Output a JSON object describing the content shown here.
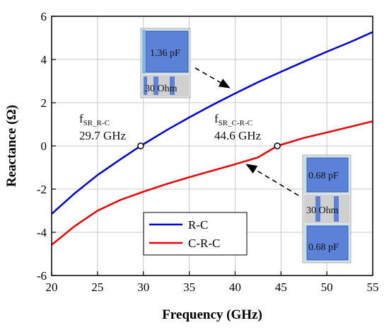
{
  "chart_data": {
    "type": "line",
    "xlabel": "Frequency (GHz)",
    "ylabel": "Reactance (Ω)",
    "xlim": [
      20,
      55
    ],
    "ylim": [
      -6,
      6
    ],
    "xticks": [
      20,
      25,
      30,
      35,
      40,
      45,
      50,
      55
    ],
    "yticks": [
      -6,
      -4,
      -2,
      0,
      2,
      4,
      6
    ],
    "grid": true,
    "legend_position": "lower-center",
    "series": [
      {
        "name": "R-C",
        "color": "#0000dd",
        "x": [
          20,
          22.5,
          25,
          27.5,
          29.7,
          32.5,
          35,
          37.5,
          40,
          42.5,
          45,
          47.5,
          50,
          52.5,
          55
        ],
        "y": [
          -3.15,
          -2.2,
          -1.35,
          -0.62,
          0,
          0.72,
          1.32,
          1.89,
          2.43,
          2.95,
          3.43,
          3.9,
          4.36,
          4.8,
          5.27
        ]
      },
      {
        "name": "C-R-C",
        "color": "#ee0000",
        "x": [
          20,
          22.5,
          25,
          27.5,
          30,
          32.5,
          35,
          37.5,
          40,
          42.5,
          44.6,
          47.5,
          50,
          52.5,
          55
        ],
        "y": [
          -4.58,
          -3.72,
          -3.0,
          -2.5,
          -2.12,
          -1.77,
          -1.45,
          -1.15,
          -0.85,
          -0.53,
          0,
          0.37,
          0.62,
          0.88,
          1.14
        ]
      }
    ],
    "markers": [
      {
        "x": 29.7,
        "y": 0,
        "label_main": "f",
        "label_sub": "SR_R-C",
        "label_value": "29.7 GHz"
      },
      {
        "x": 44.6,
        "y": 0,
        "label_main": "f",
        "label_sub": "SR_C-R-C",
        "label_value": "44.6 GHz"
      }
    ]
  },
  "insets": {
    "rc": {
      "cap_label": "1.36 pF",
      "res_label": "30 Ohm"
    },
    "crc": {
      "cap_top_label": "0.68 pF",
      "res_label": "30 Ohm",
      "cap_bottom_label": "0.68 pF"
    }
  },
  "colors": {
    "pad_blue": "#5b82d6",
    "pad_light": "#b9dff0",
    "substrate_gray": "#d8d8d8"
  }
}
